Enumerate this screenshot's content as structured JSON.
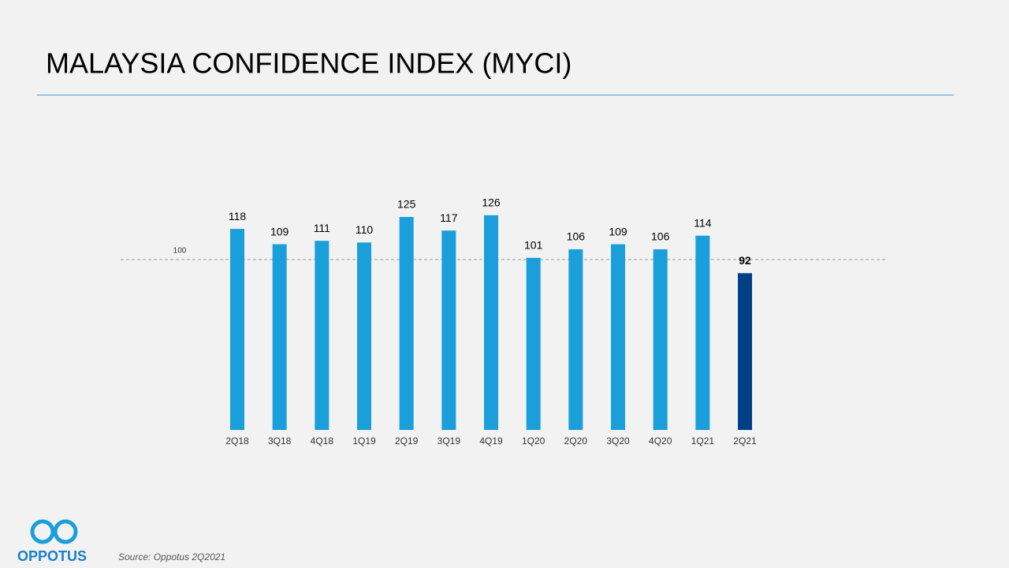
{
  "chart_data": {
    "type": "bar",
    "title": "MALAYSIA CONFIDENCE INDEX (MYCI)",
    "categories": [
      "2Q18",
      "3Q18",
      "4Q18",
      "1Q19",
      "2Q19",
      "3Q19",
      "4Q19",
      "1Q20",
      "2Q20",
      "3Q20",
      "4Q20",
      "1Q21",
      "2Q21"
    ],
    "values": [
      118,
      109,
      111,
      110,
      125,
      117,
      126,
      101,
      106,
      109,
      106,
      114,
      92
    ],
    "colors": [
      "#1a9fda",
      "#1a9fda",
      "#1a9fda",
      "#1a9fda",
      "#1a9fda",
      "#1a9fda",
      "#1a9fda",
      "#1a9fda",
      "#1a9fda",
      "#1a9fda",
      "#1a9fda",
      "#1a9fda",
      "#003f87"
    ],
    "ylim": [
      0,
      130
    ],
    "reference_line": 100,
    "source": "Source: Oppotus 2Q2021",
    "logo": "OPPOTUS"
  }
}
